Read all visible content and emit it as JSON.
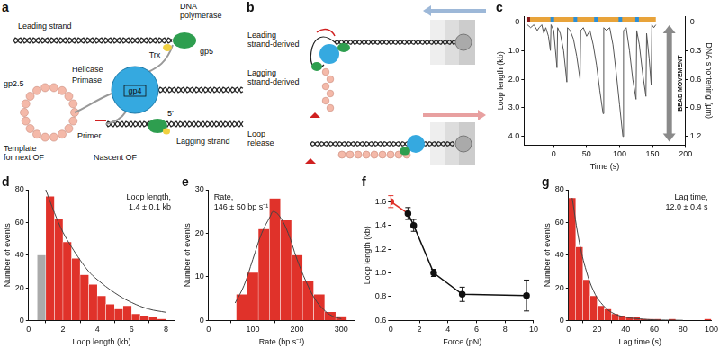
{
  "diagrams": {
    "a": {
      "label": "a",
      "texts": [
        [
          "DNA",
          "polymerase"
        ],
        [
          "Leading strand"
        ],
        [
          "Trx"
        ],
        [
          "gp5"
        ],
        [
          "Helicase"
        ],
        [
          "Primase"
        ],
        [
          "gp2.5"
        ],
        [
          "gp4"
        ],
        [
          "Primer"
        ],
        [
          "5′"
        ],
        [
          "Lagging strand"
        ],
        [
          "Template",
          "for next OF"
        ],
        [
          "Nascent OF"
        ]
      ]
    },
    "b": {
      "label": "b",
      "texts": [
        [
          "Leading",
          "strand-derived"
        ],
        [
          "Lagging",
          "strand-derived"
        ],
        [
          "Loop",
          "release"
        ]
      ]
    }
  },
  "chart_data": [
    {
      "label": "c",
      "type": "line",
      "color": "#555555",
      "x": [
        -40,
        -35,
        -30,
        -25,
        -22,
        -18,
        -15,
        -12,
        -8,
        -5,
        -4,
        0,
        5,
        6,
        10,
        15,
        20,
        21,
        25,
        30,
        35,
        40,
        41,
        45,
        50,
        55,
        60,
        65,
        70,
        75,
        76,
        80,
        85,
        90,
        95,
        100,
        105,
        106,
        110,
        115,
        120,
        125,
        126,
        130,
        135,
        140,
        141,
        145,
        148,
        149,
        152,
        155
      ],
      "values": [
        0.1,
        0.2,
        0.1,
        0.3,
        0.2,
        0.1,
        0.4,
        0.2,
        0.5,
        1.0,
        0.1,
        0.3,
        1.6,
        0.2,
        0.4,
        1.0,
        2.1,
        0.2,
        0.3,
        0.6,
        1.2,
        2.0,
        0.3,
        0.2,
        0.5,
        0.3,
        0.8,
        1.5,
        2.4,
        3.2,
        0.2,
        0.3,
        0.2,
        0.8,
        1.8,
        2.9,
        4.0,
        0.3,
        0.2,
        1.0,
        2.0,
        2.7,
        0.3,
        0.8,
        1.8,
        2.6,
        0.4,
        1.3,
        2.2,
        0.1,
        0.2,
        0.1
      ],
      "xlabel": "Time (s)",
      "ylabel": "Loop length (kb)",
      "y2label": "DNA shortening (μm)",
      "xlim": [
        -45,
        200
      ],
      "xticks": [
        0,
        50,
        100,
        150,
        200
      ],
      "ylim": [
        4.3,
        -0.2
      ],
      "yticks": [
        0,
        {
          "value": 1,
          "label": "1.0"
        },
        {
          "value": 2,
          "label": "2.0"
        },
        {
          "value": 3,
          "label": "3.0"
        },
        {
          "value": 4,
          "label": "4.0"
        }
      ],
      "y2lim": [
        1.29,
        -0.06
      ],
      "y2ticks": [
        0,
        0.3,
        0.6,
        0.9,
        1.2
      ],
      "annotation": [
        "BEAD MOVEMENT"
      ],
      "grid": false
    },
    {
      "label": "d",
      "type": "histogram",
      "bins": [
        0.5,
        1,
        1.5,
        2,
        2.5,
        3,
        3.5,
        4,
        4.5,
        5,
        5.5,
        6,
        6.5,
        7,
        7.5,
        8
      ],
      "values": [
        40,
        76,
        62,
        48,
        38,
        28,
        22,
        15,
        10,
        7,
        9,
        4,
        3,
        2,
        1
      ],
      "colors": [
        "#aaaaaa",
        "#e0322a",
        "#e0322a",
        "#e0322a",
        "#e0322a",
        "#e0322a",
        "#e0322a",
        "#e0322a",
        "#e0322a",
        "#e0322a",
        "#e0322a",
        "#e0322a",
        "#e0322a",
        "#e0322a",
        "#e0322a"
      ],
      "fit": {
        "x": [
          1,
          1.5,
          2,
          2.5,
          3,
          3.5,
          4,
          5,
          6,
          7,
          8
        ],
        "values": [
          80,
          66,
          54,
          45,
          37,
          30,
          25,
          17,
          11,
          7,
          5
        ],
        "color": "#444444"
      },
      "annotation": [
        "Loop length,",
        "1.4 ± 0.1 kb"
      ],
      "xlabel": "Loop length (kb)",
      "ylabel": "Number of events",
      "xlim": [
        0,
        8.5
      ],
      "xticks": [
        0,
        2,
        4,
        6,
        8
      ],
      "ylim": [
        0,
        80
      ],
      "yticks": [
        0,
        20,
        40,
        60,
        80
      ],
      "grid": false
    },
    {
      "label": "e",
      "type": "histogram",
      "bins": [
        62.5,
        87.5,
        112.5,
        137.5,
        162.5,
        187.5,
        212.5,
        237.5,
        262.5,
        287.5,
        312.5
      ],
      "values": [
        6,
        11,
        21,
        28,
        23,
        15,
        9,
        6,
        2,
        1
      ],
      "color": "#e0322a",
      "fit": {
        "x": [
          60,
          80,
          100,
          120,
          140,
          146,
          160,
          180,
          200,
          220,
          240,
          260,
          280,
          300
        ],
        "values": [
          4,
          8,
          14,
          20,
          24,
          25,
          24,
          20,
          14,
          9,
          5,
          2.5,
          1,
          0.4
        ],
        "color": "#444444"
      },
      "annotation": [
        "Rate,",
        "146 ± 50 bp s⁻¹"
      ],
      "xlabel": "Rate (bp s⁻¹)",
      "ylabel": "Number of events",
      "xlim": [
        0,
        330
      ],
      "xticks": [
        0,
        100,
        200,
        300
      ],
      "ylim": [
        0,
        30
      ],
      "yticks": [
        0,
        10,
        20,
        30
      ],
      "grid": false
    },
    {
      "label": "f",
      "type": "line",
      "x": [
        0,
        1.2,
        1.6,
        3,
        5,
        9.5
      ],
      "values": [
        1.6,
        1.5,
        1.4,
        1.0,
        0.82,
        0.81
      ],
      "errors": [
        0.05,
        0.05,
        0.05,
        0.03,
        0.06,
        0.13
      ],
      "colors": [
        "#e0322a",
        "#111111",
        "#111111",
        "#111111",
        "#111111",
        "#111111"
      ],
      "marker": "circle",
      "xlabel": "Force (pN)",
      "ylabel": "Loop length (kb)",
      "xlim": [
        0,
        10
      ],
      "xticks": [
        0,
        2,
        4,
        6,
        8,
        10
      ],
      "ylim": [
        0.6,
        1.7
      ],
      "yticks": [
        0.6,
        0.8,
        {
          "value": 1,
          "label": "1.0"
        },
        1.2,
        1.4,
        1.6
      ],
      "grid": false
    },
    {
      "label": "g",
      "type": "histogram",
      "bins": [
        0,
        5,
        10,
        15,
        20,
        25,
        30,
        35,
        40,
        45,
        50,
        55,
        60,
        65,
        70,
        75,
        80,
        85,
        90,
        95,
        100
      ],
      "values": [
        75,
        45,
        25,
        15,
        9,
        7,
        4,
        3,
        2,
        2,
        1,
        1,
        1,
        0,
        1,
        0,
        0,
        0,
        0,
        1
      ],
      "color": "#e0322a",
      "fit": {
        "x": [
          2.5,
          7.5,
          12.5,
          17.5,
          22.5,
          30,
          40,
          50,
          60,
          80
        ],
        "values": [
          75,
          48,
          30,
          18,
          11,
          5,
          2,
          1,
          0.4,
          0.1
        ],
        "color": "#444444"
      },
      "annotation": [
        "Lag time,",
        "12.0 ± 0.4 s"
      ],
      "xlabel": "Lag time (s)",
      "ylabel": "Number of events",
      "xlim": [
        0,
        100
      ],
      "xticks": [
        0,
        20,
        40,
        60,
        80,
        100
      ],
      "ylim": [
        0,
        80
      ],
      "yticks": [
        0,
        20,
        40,
        60,
        80
      ],
      "grid": false
    }
  ]
}
